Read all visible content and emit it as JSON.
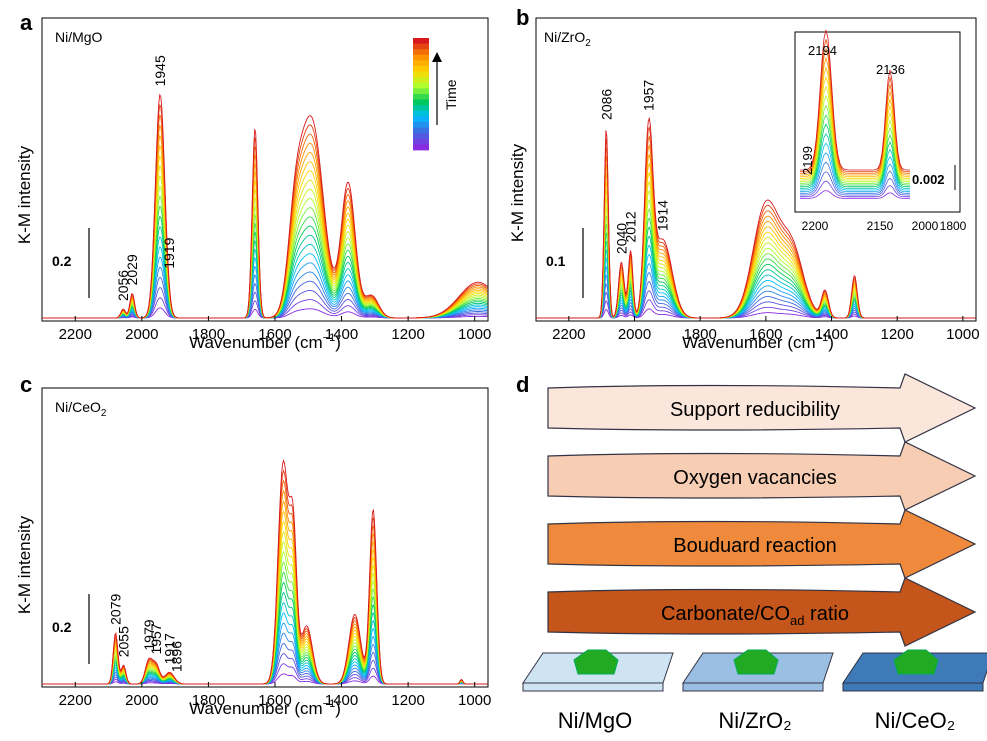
{
  "figure": {
    "shared": {
      "xlabel": "Wavenumber (cm⁻¹)",
      "ylabel": "K-M intensity",
      "xticks": [
        "2200",
        "2000",
        "1800",
        "1600",
        "1400",
        "1200",
        "1000"
      ]
    }
  },
  "chart_data": [
    {
      "panel": "a",
      "type": "line",
      "label": "Ni/MgO",
      "xlabel": "Wavenumber (cm⁻¹)",
      "ylabel": "K-M intensity",
      "xlim": [
        2300,
        960
      ],
      "x_reversed": true,
      "scale_bar": "0.2",
      "colorbar_label": "Time",
      "colormap": [
        "#8a2be2",
        "#4169e1",
        "#00bfff",
        "#00c957",
        "#adff2f",
        "#ffd700",
        "#ff8c00",
        "#d7191c"
      ],
      "peak_labels": [
        "1945",
        "1919",
        "2056",
        "2029"
      ],
      "peak_positions": [
        1945,
        1919,
        2056,
        2029
      ],
      "bands": [
        {
          "center": 1945,
          "width": 20,
          "height": 1.0
        },
        {
          "center": 2029,
          "width": 10,
          "height": 0.11
        },
        {
          "center": 2056,
          "width": 10,
          "height": 0.04
        },
        {
          "center": 1660,
          "width": 12,
          "height": 0.85
        },
        {
          "center": 1540,
          "width": 30,
          "height": 0.32
        },
        {
          "center": 1490,
          "width": 50,
          "height": 0.88
        },
        {
          "center": 1380,
          "width": 30,
          "height": 0.6
        },
        {
          "center": 1310,
          "width": 30,
          "height": 0.1
        },
        {
          "center": 990,
          "width": 80,
          "height": 0.16
        }
      ],
      "final_max": 0.86,
      "n_traces": 22
    },
    {
      "panel": "b",
      "type": "line",
      "label": "Ni/ZrO2",
      "xlabel": "Wavenumber (cm⁻¹)",
      "ylabel": "K-M intensity",
      "xlim": [
        2300,
        960
      ],
      "x_reversed": true,
      "scale_bar": "0.1",
      "peak_labels": [
        "2086",
        "2012",
        "2040",
        "1957",
        "1914"
      ],
      "peak_positions": [
        2086,
        2012,
        2040,
        1957,
        1914
      ],
      "bands": [
        {
          "center": 2086,
          "width": 9,
          "height": 0.85
        },
        {
          "center": 2040,
          "width": 12,
          "height": 0.25
        },
        {
          "center": 2012,
          "width": 10,
          "height": 0.3
        },
        {
          "center": 1957,
          "width": 18,
          "height": 0.78
        },
        {
          "center": 1914,
          "width": 40,
          "height": 0.35
        },
        {
          "center": 1600,
          "width": 55,
          "height": 0.5
        },
        {
          "center": 1520,
          "width": 50,
          "height": 0.3
        },
        {
          "center": 1420,
          "width": 15,
          "height": 0.12
        },
        {
          "center": 1330,
          "width": 12,
          "height": 0.19
        }
      ],
      "final_max": 0.86,
      "n_traces": 22,
      "inset": {
        "xlim": [
          2220,
          1800
        ],
        "xticks": [
          "2200",
          "2150",
          "2000",
          "1800"
        ],
        "scale_bar": "0.002",
        "peak_labels": [
          "2194",
          "2136",
          "2199"
        ],
        "peak_positions": [
          2194,
          2136,
          2199
        ]
      }
    },
    {
      "panel": "c",
      "type": "line",
      "label": "Ni/CeO2",
      "xlabel": "Wavenumber (cm⁻¹)",
      "ylabel": "K-M intensity",
      "xlim": [
        2300,
        960
      ],
      "x_reversed": true,
      "scale_bar": "0.2",
      "peak_labels": [
        "2079",
        "2055",
        "1979",
        "1957",
        "1917",
        "1896"
      ],
      "peak_positions": [
        2079,
        2055,
        1979,
        1957,
        1917,
        1896
      ],
      "bands": [
        {
          "center": 2079,
          "width": 10,
          "height": 0.22
        },
        {
          "center": 2055,
          "width": 10,
          "height": 0.08
        },
        {
          "center": 1979,
          "width": 15,
          "height": 0.1
        },
        {
          "center": 1957,
          "width": 15,
          "height": 0.08
        },
        {
          "center": 1917,
          "width": 20,
          "height": 0.05
        },
        {
          "center": 1575,
          "width": 22,
          "height": 0.95
        },
        {
          "center": 1545,
          "width": 15,
          "height": 0.6
        },
        {
          "center": 1505,
          "width": 25,
          "height": 0.25
        },
        {
          "center": 1360,
          "width": 25,
          "height": 0.3
        },
        {
          "center": 1305,
          "width": 15,
          "height": 0.75
        },
        {
          "center": 1040,
          "width": 6,
          "height": 0.02
        }
      ],
      "final_max": 0.86,
      "n_traces": 22
    }
  ],
  "panel_d": {
    "letter": "d",
    "arrows": [
      {
        "label": "Support reducibility",
        "color": "#fbe6dc"
      },
      {
        "label": "Oxygen vacancies",
        "color": "#f7cdb4"
      },
      {
        "label": "Bouduard reaction",
        "color": "#ef8a3c"
      },
      {
        "label": "Carbonate/CO",
        "label_sub": "ad",
        "label_suffix": " ratio",
        "color": "#c4551b"
      }
    ],
    "catalysts": [
      {
        "label": "Ni/MgO",
        "support_color": "#cfe4f3"
      },
      {
        "label": "Ni/ZrO₂",
        "support_color": "#9bbfe3"
      },
      {
        "label": "Ni/CeO₂",
        "support_color": "#3e79b8"
      }
    ],
    "particle_color": "#22aa22"
  },
  "panel_letters": [
    "a",
    "b",
    "c"
  ],
  "sample_titles": [
    "Ni/MgO",
    "Ni/ZrO",
    "Ni/CeO"
  ],
  "sample_title_subs": [
    "",
    "2",
    "2"
  ]
}
